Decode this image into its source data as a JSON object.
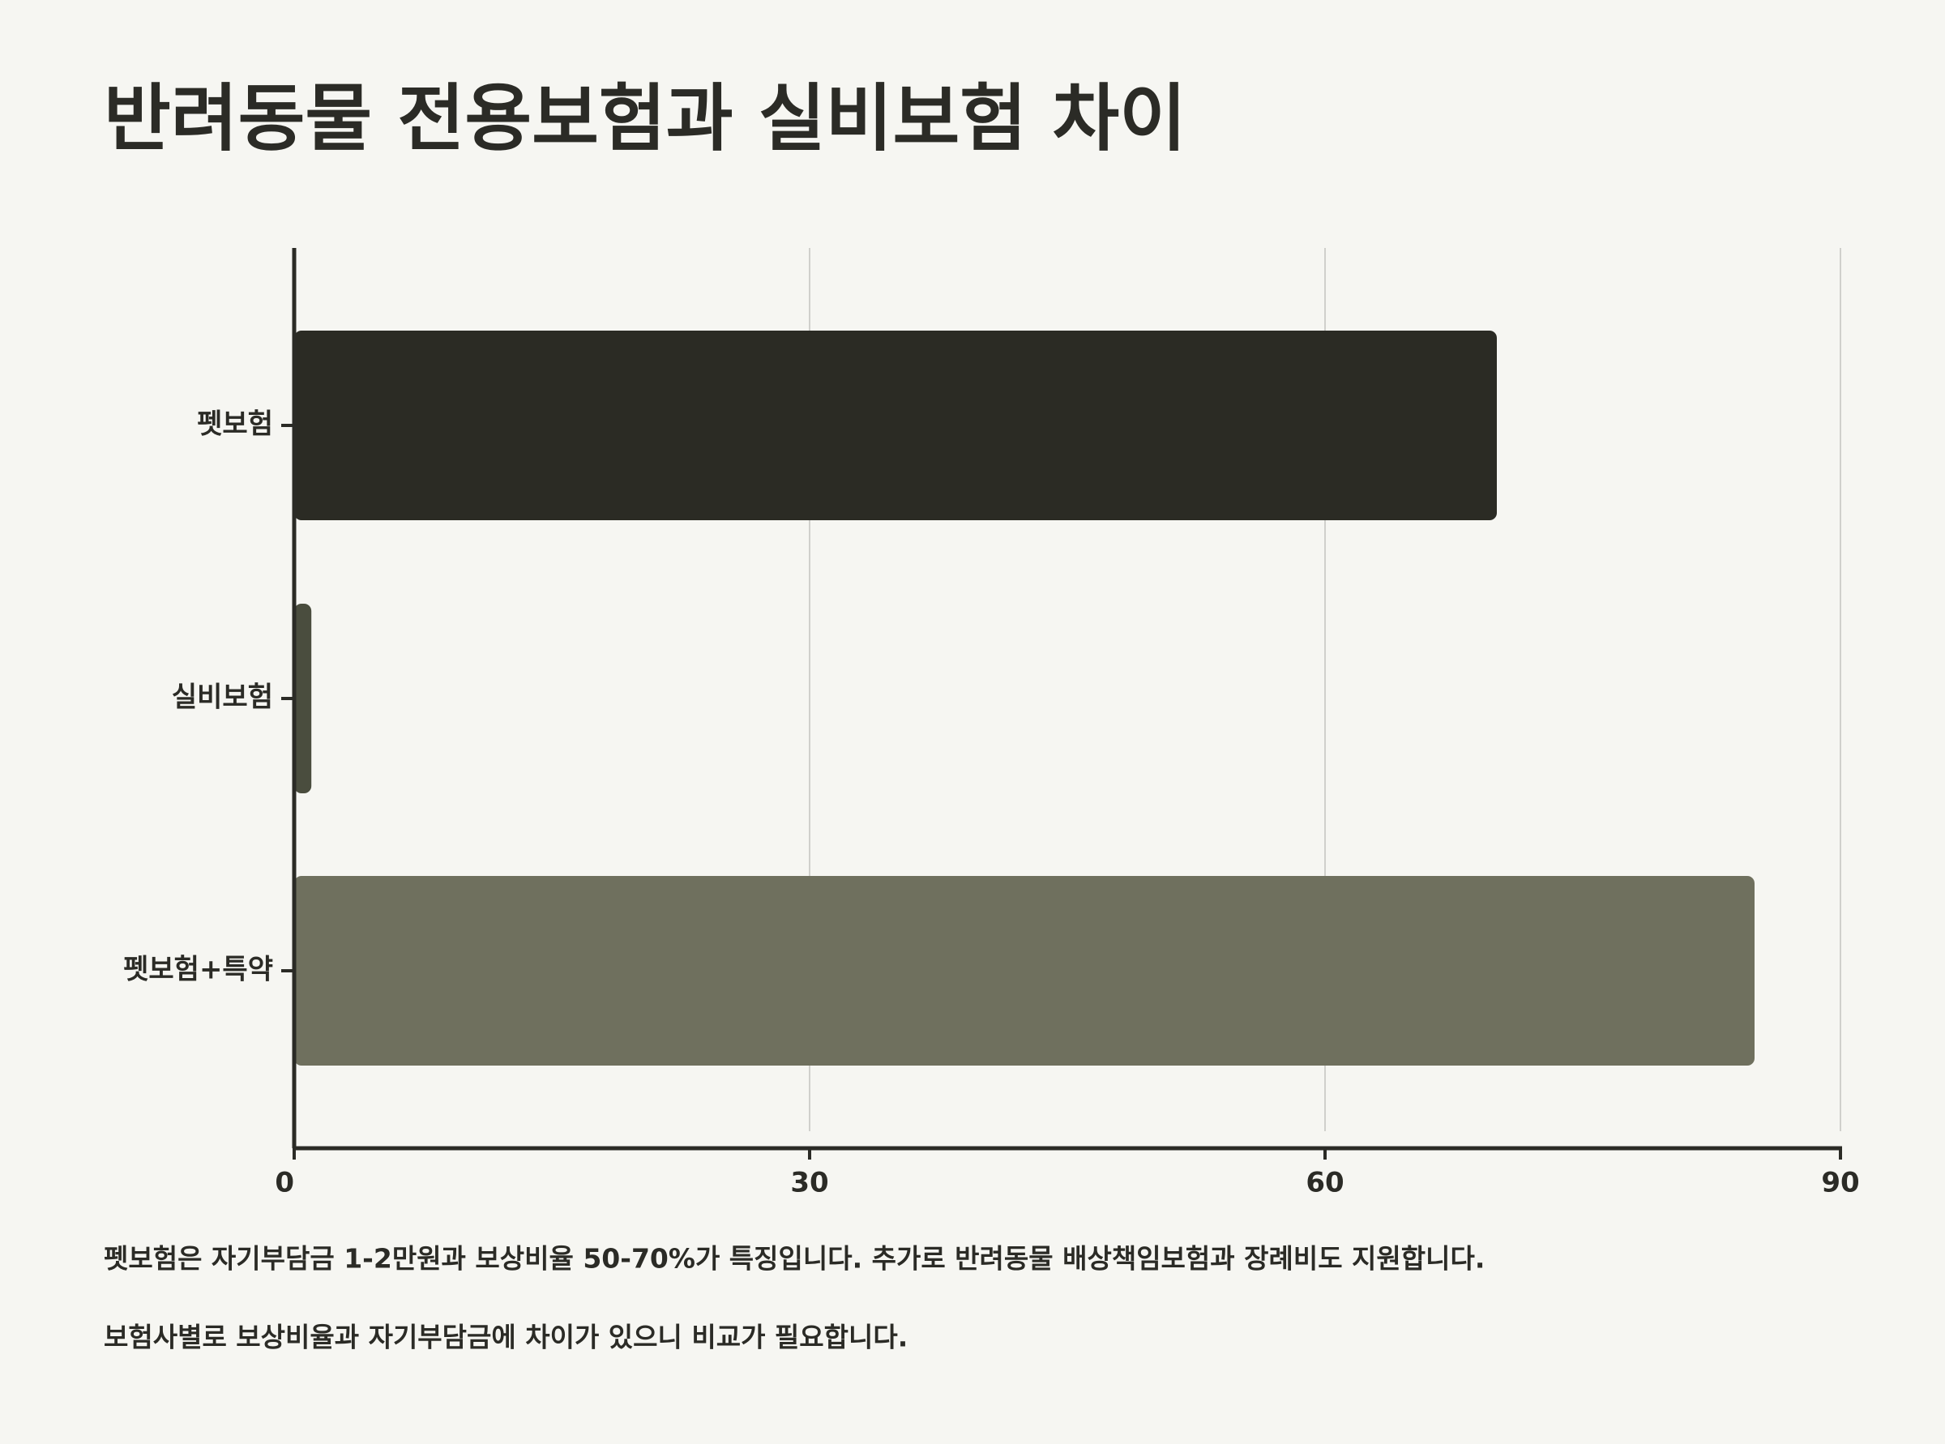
{
  "chart_data": {
    "type": "bar",
    "orientation": "horizontal",
    "title": "반려동물 전용보험과 실비보험 차이",
    "categories": [
      "펫보험",
      "실비보험",
      "펫보험+특약"
    ],
    "values": [
      70,
      1,
      85
    ],
    "colors": [
      "#2b2b24",
      "#4a4d3e",
      "#6f705e"
    ],
    "xlim": [
      0,
      90
    ],
    "xticks": [
      0,
      30,
      60,
      90
    ],
    "grid": true,
    "notes": [
      "펫보험은 자기부담금 1-2만원과 보상비율 50-70%가 특징입니다. 추가로 반려동물 배상책임보험과 장례비도 지원합니다.",
      "보험사별로 보상비율과 자기부담금에 차이가 있으니 비교가 필요합니다."
    ]
  }
}
